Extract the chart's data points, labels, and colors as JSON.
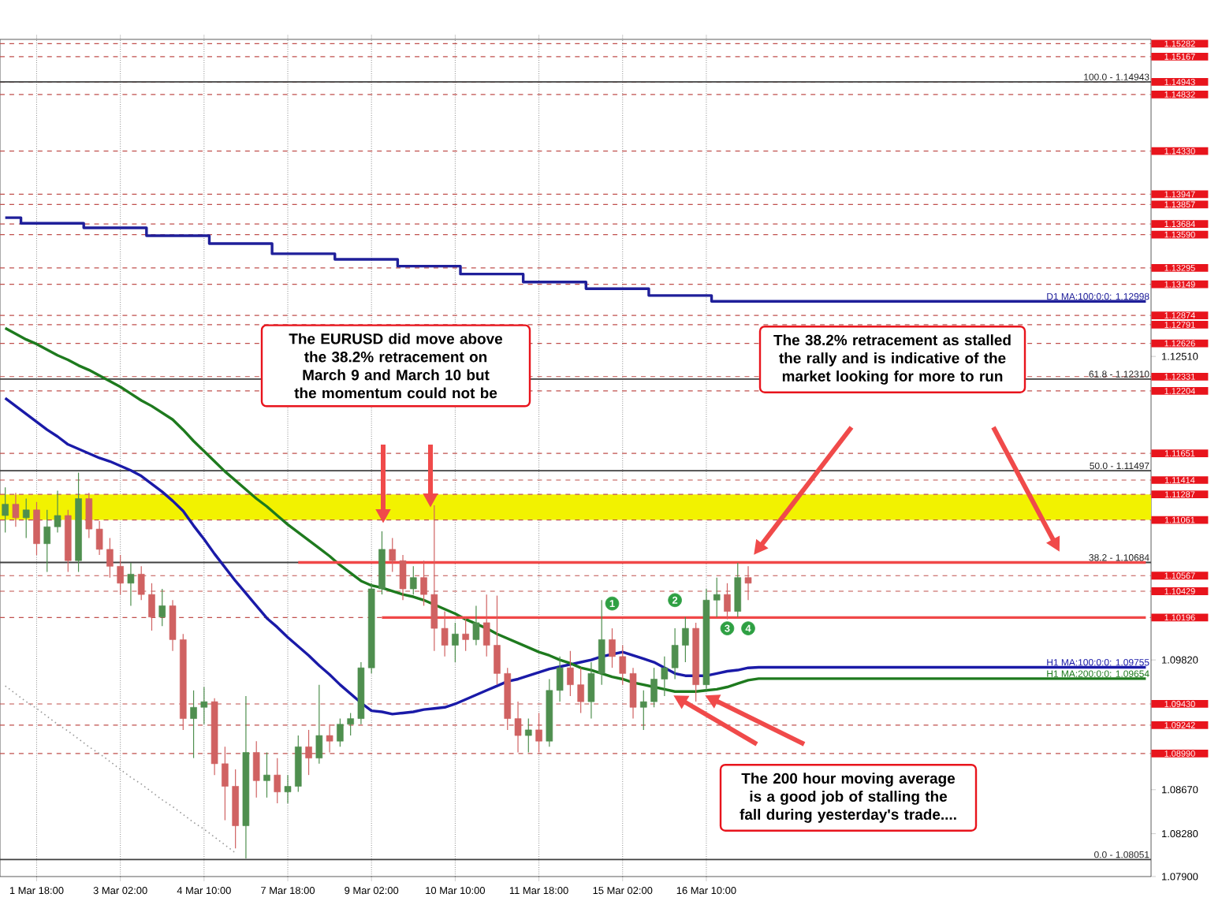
{
  "chart_data": {
    "type": "candlestick",
    "categories": [
      null,
      null,
      null,
      "1 Mar 18:00",
      null,
      null,
      null,
      null,
      null,
      null,
      null,
      "3 Mar 02:00",
      null,
      null,
      null,
      null,
      null,
      null,
      null,
      "4 Mar 10:00",
      null,
      null,
      null,
      null,
      null,
      null,
      null,
      "7 Mar 18:00",
      null,
      null,
      null,
      null,
      null,
      null,
      null,
      "9 Mar 02:00",
      null,
      null,
      null,
      null,
      null,
      null,
      null,
      "10 Mar 10:00",
      null,
      null,
      null,
      null,
      null,
      null,
      null,
      "11 Mar 18:00",
      null,
      null,
      null,
      null,
      null,
      null,
      null,
      "15 Mar 02:00",
      null,
      null,
      null,
      null,
      null,
      null,
      null,
      "16 Mar 10:00",
      null,
      null,
      null,
      null,
      null,
      null,
      null,
      null,
      null,
      null,
      null,
      null,
      null,
      null,
      null,
      null,
      null,
      null,
      null,
      null,
      null,
      null,
      null,
      null,
      null,
      null,
      null,
      null,
      null,
      null,
      null,
      null,
      null,
      null,
      null,
      null,
      null,
      null,
      null,
      null,
      null,
      null
    ],
    "ohlc": [
      [
        1.111,
        1.1135,
        1.1095,
        1.112
      ],
      [
        1.112,
        1.113,
        1.11,
        1.1108
      ],
      [
        1.1108,
        1.1125,
        1.109,
        1.1115
      ],
      [
        1.1115,
        1.1122,
        1.1075,
        1.1085
      ],
      [
        1.1085,
        1.1115,
        1.106,
        1.11
      ],
      [
        1.11,
        1.1132,
        1.1095,
        1.111
      ],
      [
        1.111,
        1.1115,
        1.106,
        1.107
      ],
      [
        1.107,
        1.1148,
        1.106,
        1.1125
      ],
      [
        1.1125,
        1.113,
        1.109,
        1.1098
      ],
      [
        1.1098,
        1.1105,
        1.1075,
        1.108
      ],
      [
        1.108,
        1.109,
        1.1055,
        1.1065
      ],
      [
        1.1065,
        1.1075,
        1.104,
        1.105
      ],
      [
        1.105,
        1.1068,
        1.103,
        1.1058
      ],
      [
        1.1058,
        1.1065,
        1.1035,
        1.104
      ],
      [
        1.104,
        1.105,
        1.1008,
        1.102
      ],
      [
        1.102,
        1.1045,
        1.1012,
        1.103
      ],
      [
        1.103,
        1.1035,
        1.099,
        1.1
      ],
      [
        1.1,
        1.1005,
        1.092,
        1.093
      ],
      [
        1.093,
        1.0955,
        1.0895,
        1.094
      ],
      [
        1.094,
        1.0958,
        1.0925,
        1.0945
      ],
      [
        1.0945,
        1.0948,
        1.088,
        1.089
      ],
      [
        1.089,
        1.0905,
        1.084,
        1.087
      ],
      [
        1.087,
        1.0885,
        1.0815,
        1.0835
      ],
      [
        1.0835,
        1.095,
        1.0806,
        1.09
      ],
      [
        1.09,
        1.091,
        1.086,
        1.0875
      ],
      [
        1.0875,
        1.09,
        1.086,
        1.088
      ],
      [
        1.088,
        1.0895,
        1.0855,
        1.0865
      ],
      [
        1.0865,
        1.088,
        1.0855,
        1.087
      ],
      [
        1.087,
        1.0915,
        1.0865,
        1.0905
      ],
      [
        1.0905,
        1.092,
        1.088,
        1.0895
      ],
      [
        1.0895,
        1.096,
        1.089,
        1.0915
      ],
      [
        1.0915,
        1.0925,
        1.09,
        1.091
      ],
      [
        1.091,
        1.093,
        1.0905,
        1.0925
      ],
      [
        1.0925,
        1.0935,
        1.0915,
        1.093
      ],
      [
        1.093,
        1.098,
        1.0925,
        1.0975
      ],
      [
        1.0975,
        1.105,
        1.097,
        1.1045
      ],
      [
        1.1045,
        1.1096,
        1.104,
        1.108
      ],
      [
        1.108,
        1.109,
        1.106,
        1.107
      ],
      [
        1.107,
        1.1075,
        1.1035,
        1.1045
      ],
      [
        1.1045,
        1.1065,
        1.104,
        1.1055
      ],
      [
        1.1055,
        1.107,
        1.103,
        1.104
      ],
      [
        1.104,
        1.1119,
        1.099,
        1.101
      ],
      [
        1.101,
        1.1025,
        1.0985,
        1.0995
      ],
      [
        1.0995,
        1.1015,
        1.098,
        1.1005
      ],
      [
        1.1005,
        1.102,
        1.099,
        1.1
      ],
      [
        1.1,
        1.103,
        1.0995,
        1.1015
      ],
      [
        1.1015,
        1.104,
        1.0985,
        1.0995
      ],
      [
        1.0995,
        1.1039,
        1.096,
        1.097
      ],
      [
        1.097,
        1.0975,
        1.092,
        1.093
      ],
      [
        1.093,
        1.0945,
        1.09,
        1.0915
      ],
      [
        1.0915,
        1.093,
        1.09,
        1.092
      ],
      [
        1.092,
        1.0935,
        1.09,
        1.091
      ],
      [
        1.091,
        1.0965,
        1.0905,
        1.0955
      ],
      [
        1.0955,
        1.0985,
        1.0945,
        1.0975
      ],
      [
        1.0975,
        1.099,
        1.095,
        1.096
      ],
      [
        1.096,
        1.0975,
        1.0935,
        1.0945
      ],
      [
        1.0945,
        1.098,
        1.093,
        1.097
      ],
      [
        1.097,
        1.1035,
        1.096,
        1.1
      ],
      [
        1.1,
        1.101,
        1.0975,
        1.0985
      ],
      [
        1.0985,
        1.0995,
        1.096,
        1.097
      ],
      [
        1.097,
        1.0975,
        1.093,
        1.094
      ],
      [
        1.094,
        1.0955,
        1.092,
        1.0945
      ],
      [
        1.0945,
        1.0975,
        1.094,
        1.0965
      ],
      [
        1.0965,
        1.0985,
        1.095,
        1.0975
      ],
      [
        1.0975,
        1.101,
        1.0965,
        1.0995
      ],
      [
        1.0995,
        1.102,
        1.098,
        1.101
      ],
      [
        1.101,
        1.1015,
        1.0945,
        1.096
      ],
      [
        1.096,
        1.1045,
        1.0955,
        1.1035
      ],
      [
        1.1035,
        1.1055,
        1.102,
        1.104
      ],
      [
        1.104,
        1.105,
        1.1018,
        1.1025
      ],
      [
        1.1025,
        1.1068,
        1.102,
        1.1055
      ],
      [
        1.1055,
        1.1065,
        1.1035,
        1.105
      ],
      null,
      null,
      null,
      null,
      null,
      null,
      null,
      null,
      null,
      null,
      null,
      null,
      null,
      null,
      null,
      null,
      null,
      null,
      null,
      null,
      null,
      null,
      null,
      null,
      null,
      null,
      null,
      null,
      null,
      null,
      null,
      null,
      null,
      null,
      null,
      null,
      null,
      null
    ],
    "series": [
      {
        "type": "step",
        "name": "D1 MA:100:0:0: 1.12998",
        "color": "#1f1f9a",
        "values": [
          1.1374,
          1.1374,
          1.1369,
          1.1369,
          1.1369,
          1.1369,
          1.1369,
          1.1369,
          1.1365,
          1.1365,
          1.1365,
          1.1365,
          1.1365,
          1.1365,
          1.1358,
          1.1358,
          1.1358,
          1.1358,
          1.1358,
          1.1358,
          1.1351,
          1.1351,
          1.1351,
          1.1351,
          1.1351,
          1.1351,
          1.1342,
          1.1342,
          1.1342,
          1.1342,
          1.1342,
          1.1342,
          1.1337,
          1.1337,
          1.1337,
          1.1337,
          1.1337,
          1.1337,
          1.1331,
          1.1331,
          1.1331,
          1.1331,
          1.1331,
          1.1331,
          1.1324,
          1.1324,
          1.1324,
          1.1324,
          1.1324,
          1.1324,
          1.1317,
          1.1317,
          1.1317,
          1.1317,
          1.1317,
          1.1317,
          1.1311,
          1.1311,
          1.1311,
          1.1311,
          1.1311,
          1.1311,
          1.1305,
          1.1305,
          1.1305,
          1.1305,
          1.1305,
          1.1305,
          1.12998,
          1.12998,
          1.12998,
          1.12998,
          1.12998,
          1.12998,
          1.12998,
          1.12998,
          1.12998,
          1.12998,
          1.12998,
          1.12998,
          1.12998,
          1.12998,
          1.12998,
          1.12998,
          1.12998,
          1.12998,
          1.12998,
          1.12998,
          1.12998,
          1.12998,
          1.12998,
          1.12998,
          1.12998,
          1.12998,
          1.12998,
          1.12998,
          1.12998,
          1.12998,
          1.12998,
          1.12998,
          1.12998,
          1.12998,
          1.12998,
          1.12998,
          1.12998,
          1.12998,
          1.12998,
          1.12998,
          1.12998,
          1.12998
        ]
      },
      {
        "type": "line",
        "name": "H1 MA:100:0:0: 1.09755",
        "color": "#1a1aa8",
        "values": [
          1.1214,
          1.1207,
          1.12,
          1.1193,
          1.1186,
          1.118,
          1.1173,
          1.1169,
          1.1165,
          1.1161,
          1.1158,
          1.1154,
          1.115,
          1.1145,
          1.1138,
          1.1131,
          1.1123,
          1.1114,
          1.1101,
          1.1089,
          1.1076,
          1.1064,
          1.1052,
          1.1041,
          1.103,
          1.1019,
          1.1011,
          1.1002,
          1.0994,
          1.0986,
          1.0977,
          1.0969,
          1.096,
          1.0952,
          1.0944,
          1.0937,
          1.0936,
          1.0934,
          1.0935,
          1.0936,
          1.0938,
          1.0939,
          1.094,
          1.0943,
          1.0947,
          1.0951,
          1.0955,
          1.0959,
          1.0963,
          1.0965,
          1.0968,
          1.0971,
          1.0974,
          1.0976,
          1.0978,
          1.098,
          1.0982,
          1.0985,
          1.0987,
          1.0989,
          1.0986,
          1.0983,
          1.098,
          1.0975,
          1.097,
          1.0968,
          1.0968,
          1.0968,
          1.097,
          1.0972,
          1.0973,
          1.0975,
          1.09755,
          1.09755,
          1.09755,
          1.09755,
          1.09755,
          1.09755,
          1.09755,
          1.09755,
          1.09755,
          1.09755,
          1.09755,
          1.09755,
          1.09755,
          1.09755,
          1.09755,
          1.09755,
          1.09755,
          1.09755,
          1.09755,
          1.09755,
          1.09755,
          1.09755,
          1.09755,
          1.09755,
          1.09755,
          1.09755,
          1.09755,
          1.09755,
          1.09755,
          1.09755,
          1.09755,
          1.09755,
          1.09755,
          1.09755,
          1.09755,
          1.09755,
          1.09755,
          1.09755
        ]
      },
      {
        "type": "line",
        "name": "H1 MA:200:0:0: 1.09654",
        "color": "#1e7a1e",
        "values": [
          1.1276,
          1.1271,
          1.1266,
          1.1262,
          1.1257,
          1.1252,
          1.1248,
          1.1243,
          1.1239,
          1.1234,
          1.1229,
          1.1224,
          1.1218,
          1.1212,
          1.1207,
          1.1201,
          1.1195,
          1.1186,
          1.1176,
          1.1167,
          1.1158,
          1.1149,
          1.1141,
          1.1133,
          1.1125,
          1.1118,
          1.111,
          1.1102,
          1.1095,
          1.1088,
          1.1081,
          1.1074,
          1.1066,
          1.1059,
          1.1052,
          1.1048,
          1.1046,
          1.1043,
          1.104,
          1.1038,
          1.1035,
          1.1031,
          1.1027,
          1.1023,
          1.1018,
          1.1014,
          1.101,
          1.1005,
          1.1001,
          1.0997,
          1.0993,
          1.0989,
          1.0986,
          1.0982,
          1.0979,
          1.0975,
          1.0973,
          1.097,
          1.0967,
          1.0965,
          1.0962,
          1.096,
          1.0958,
          1.0956,
          1.0954,
          1.0954,
          1.0954,
          1.0955,
          1.0956,
          1.0958,
          1.0961,
          1.0964,
          1.09654,
          1.09654,
          1.09654,
          1.09654,
          1.09654,
          1.09654,
          1.09654,
          1.09654,
          1.09654,
          1.09654,
          1.09654,
          1.09654,
          1.09654,
          1.09654,
          1.09654,
          1.09654,
          1.09654,
          1.09654,
          1.09654,
          1.09654,
          1.09654,
          1.09654,
          1.09654,
          1.09654,
          1.09654,
          1.09654,
          1.09654,
          1.09654,
          1.09654,
          1.09654,
          1.09654,
          1.09654,
          1.09654,
          1.09654,
          1.09654,
          1.09654,
          1.09654,
          1.09654
        ]
      },
      {
        "type": "line",
        "color": "#9a9a9a",
        "line_style": "dotted",
        "values": [
          1.0959,
          1.0952,
          1.0945,
          1.0939,
          1.0932,
          1.0925,
          1.0919,
          1.0912,
          1.0905,
          1.0899,
          1.0892,
          1.0885,
          1.0878,
          1.0872,
          1.0865,
          1.0858,
          1.0852,
          1.0845,
          1.0838,
          1.0832,
          1.0825,
          1.0818,
          1.0811,
          null,
          null,
          null,
          null,
          null,
          null,
          null,
          null,
          null,
          null,
          null,
          null,
          null,
          null,
          null,
          null,
          null,
          null,
          null,
          null,
          null,
          null,
          null,
          null,
          null,
          null,
          null,
          null,
          null,
          null,
          null,
          null,
          null,
          null,
          null,
          null,
          null,
          null,
          null,
          null,
          null,
          null,
          null,
          null,
          null,
          null,
          null,
          null,
          null,
          null,
          null,
          null,
          null,
          null,
          null,
          null,
          null,
          null,
          null,
          null,
          null,
          null,
          null,
          null,
          null,
          null,
          null,
          null,
          null,
          null,
          null,
          null,
          null,
          null,
          null,
          null,
          null,
          null,
          null,
          null,
          null,
          null,
          null,
          null,
          null,
          null,
          null
        ]
      },
      {
        "type": "line",
        "color": "#f04848",
        "values": [
          null,
          null,
          null,
          null,
          null,
          null,
          null,
          null,
          null,
          null,
          null,
          null,
          null,
          null,
          null,
          null,
          null,
          null,
          null,
          null,
          null,
          null,
          null,
          null,
          null,
          null,
          null,
          null,
          1.10684,
          1.10684,
          1.10684,
          1.10684,
          1.10684,
          1.10684,
          1.10684,
          1.10684,
          1.10684,
          1.10684,
          1.10684,
          1.10684,
          1.10684,
          1.10684,
          1.10684,
          1.10684,
          1.10684,
          1.10684,
          1.10684,
          1.10684,
          1.10684,
          1.10684,
          1.10684,
          1.10684,
          1.10684,
          1.10684,
          1.10684,
          1.10684,
          1.10684,
          1.10684,
          1.10684,
          1.10684,
          1.10684,
          1.10684,
          1.10684,
          1.10684,
          1.10684,
          1.10684,
          1.10684,
          1.10684,
          1.10684,
          1.10684,
          1.10684,
          1.10684,
          1.10684,
          1.10684,
          1.10684,
          1.10684,
          1.10684,
          1.10684,
          1.10684,
          1.10684,
          1.10684,
          1.10684,
          1.10684,
          1.10684,
          1.10684,
          1.10684,
          1.10684,
          1.10684,
          1.10684,
          1.10684,
          1.10684,
          1.10684,
          1.10684,
          1.10684,
          1.10684,
          1.10684,
          1.10684,
          1.10684,
          1.10684,
          1.10684,
          1.10684,
          1.10684,
          1.10684,
          1.10684,
          1.10684,
          1.10684,
          1.10684,
          1.10684,
          1.10684,
          1.10684
        ]
      },
      {
        "type": "line",
        "color": "#f04848",
        "values": [
          null,
          null,
          null,
          null,
          null,
          null,
          null,
          null,
          null,
          null,
          null,
          null,
          null,
          null,
          null,
          null,
          null,
          null,
          null,
          null,
          null,
          null,
          null,
          null,
          null,
          null,
          null,
          null,
          null,
          null,
          null,
          null,
          null,
          null,
          null,
          null,
          1.10196,
          1.10196,
          1.10196,
          1.10196,
          1.10196,
          1.10196,
          1.10196,
          1.10196,
          1.10196,
          1.10196,
          1.10196,
          1.10196,
          1.10196,
          1.10196,
          1.10196,
          1.10196,
          1.10196,
          1.10196,
          1.10196,
          1.10196,
          1.10196,
          1.10196,
          1.10196,
          1.10196,
          1.10196,
          1.10196,
          1.10196,
          1.10196,
          1.10196,
          1.10196,
          1.10196,
          1.10196,
          1.10196,
          1.10196,
          1.10196,
          1.10196,
          1.10196,
          1.10196,
          1.10196,
          1.10196,
          1.10196,
          1.10196,
          1.10196,
          1.10196,
          1.10196,
          1.10196,
          1.10196,
          1.10196,
          1.10196,
          1.10196,
          1.10196,
          1.10196,
          1.10196,
          1.10196,
          1.10196,
          1.10196,
          1.10196,
          1.10196,
          1.10196,
          1.10196,
          1.10196,
          1.10196,
          1.10196,
          1.10196,
          1.10196,
          1.10196,
          1.10196,
          1.10196,
          1.10196,
          1.10196,
          1.10196,
          1.10196,
          1.10196,
          1.10196
        ]
      },
      {
        "type": "scatter",
        "name": "1",
        "color": "#2ea043",
        "marker": "circle",
        "values": [
          null,
          null,
          null,
          null,
          null,
          null,
          null,
          null,
          null,
          null,
          null,
          null,
          null,
          null,
          null,
          null,
          null,
          null,
          null,
          null,
          null,
          null,
          null,
          null,
          null,
          null,
          null,
          null,
          null,
          null,
          null,
          null,
          null,
          null,
          null,
          null,
          null,
          null,
          null,
          null,
          null,
          null,
          null,
          null,
          null,
          null,
          null,
          null,
          null,
          null,
          null,
          null,
          null,
          null,
          null,
          null,
          null,
          null,
          1.1032,
          null,
          null,
          null,
          null,
          null,
          null,
          null,
          null,
          null,
          null,
          null,
          null,
          null,
          null,
          null,
          null,
          null,
          null,
          null,
          null,
          null,
          null,
          null,
          null,
          null,
          null,
          null,
          null,
          null,
          null,
          null,
          null,
          null,
          null,
          null,
          null,
          null,
          null,
          null,
          null,
          null,
          null,
          null,
          null,
          null,
          null,
          null,
          null,
          null,
          null,
          null
        ]
      },
      {
        "type": "scatter",
        "name": "2",
        "color": "#2ea043",
        "marker": "circle",
        "values": [
          null,
          null,
          null,
          null,
          null,
          null,
          null,
          null,
          null,
          null,
          null,
          null,
          null,
          null,
          null,
          null,
          null,
          null,
          null,
          null,
          null,
          null,
          null,
          null,
          null,
          null,
          null,
          null,
          null,
          null,
          null,
          null,
          null,
          null,
          null,
          null,
          null,
          null,
          null,
          null,
          null,
          null,
          null,
          null,
          null,
          null,
          null,
          null,
          null,
          null,
          null,
          null,
          null,
          null,
          null,
          null,
          null,
          null,
          null,
          null,
          null,
          null,
          null,
          null,
          1.1035,
          null,
          null,
          null,
          null,
          null,
          null,
          null,
          null,
          null,
          null,
          null,
          null,
          null,
          null,
          null,
          null,
          null,
          null,
          null,
          null,
          null,
          null,
          null,
          null,
          null,
          null,
          null,
          null,
          null,
          null,
          null,
          null,
          null,
          null,
          null,
          null,
          null,
          null,
          null,
          null,
          null,
          null,
          null,
          null,
          null
        ]
      },
      {
        "type": "scatter",
        "name": "3",
        "color": "#2ea043",
        "marker": "circle",
        "values": [
          null,
          null,
          null,
          null,
          null,
          null,
          null,
          null,
          null,
          null,
          null,
          null,
          null,
          null,
          null,
          null,
          null,
          null,
          null,
          null,
          null,
          null,
          null,
          null,
          null,
          null,
          null,
          null,
          null,
          null,
          null,
          null,
          null,
          null,
          null,
          null,
          null,
          null,
          null,
          null,
          null,
          null,
          null,
          null,
          null,
          null,
          null,
          null,
          null,
          null,
          null,
          null,
          null,
          null,
          null,
          null,
          null,
          null,
          null,
          null,
          null,
          null,
          null,
          null,
          null,
          null,
          null,
          null,
          null,
          1.101,
          null,
          null,
          null,
          null,
          null,
          null,
          null,
          null,
          null,
          null,
          null,
          null,
          null,
          null,
          null,
          null,
          null,
          null,
          null,
          null,
          null,
          null,
          null,
          null,
          null,
          null,
          null,
          null,
          null,
          null,
          null,
          null,
          null,
          null,
          null,
          null,
          null,
          null,
          null,
          null
        ]
      },
      {
        "type": "scatter",
        "name": "4",
        "color": "#2ea043",
        "marker": "circle",
        "values": [
          null,
          null,
          null,
          null,
          null,
          null,
          null,
          null,
          null,
          null,
          null,
          null,
          null,
          null,
          null,
          null,
          null,
          null,
          null,
          null,
          null,
          null,
          null,
          null,
          null,
          null,
          null,
          null,
          null,
          null,
          null,
          null,
          null,
          null,
          null,
          null,
          null,
          null,
          null,
          null,
          null,
          null,
          null,
          null,
          null,
          null,
          null,
          null,
          null,
          null,
          null,
          null,
          null,
          null,
          null,
          null,
          null,
          null,
          null,
          null,
          null,
          null,
          null,
          null,
          null,
          null,
          null,
          null,
          null,
          null,
          null,
          1.101,
          null,
          null,
          null,
          null,
          null,
          null,
          null,
          null,
          null,
          null,
          null,
          null,
          null,
          null,
          null,
          null,
          null,
          null,
          null,
          null,
          null,
          null,
          null,
          null,
          null,
          null,
          null,
          null,
          null,
          null,
          null,
          null,
          null,
          null,
          null,
          null,
          null,
          null
        ]
      }
    ],
    "ylim": [
      1.079,
      1.1532
    ],
    "yticks": [
      {
        "value": 1.079,
        "label": "1.07900"
      },
      {
        "value": 1.0828,
        "label": "1.08280"
      },
      {
        "value": 1.0867,
        "label": "1.08670"
      },
      {
        "value": 1.0982,
        "label": "1.09820"
      },
      {
        "value": 1.1251,
        "label": "1.12510"
      }
    ],
    "grid": "x",
    "bands": [
      {
        "axis": "y",
        "from": 1.11061,
        "to": 1.11287,
        "color": "#f2f200"
      }
    ],
    "ref_lines": [
      {
        "axis": "y",
        "value": 1.15282,
        "label": "1.15282",
        "color": "#c0504d",
        "line_style": "dashed"
      },
      {
        "axis": "y",
        "value": 1.15167,
        "label": "1.15167",
        "color": "#c0504d",
        "line_style": "dashed"
      },
      {
        "axis": "y",
        "value": 1.14943,
        "label": "1.14943",
        "color": "#c0504d",
        "line_style": "dashed"
      },
      {
        "axis": "y",
        "value": 1.14832,
        "label": "1.14832",
        "color": "#c0504d",
        "line_style": "dashed"
      },
      {
        "axis": "y",
        "value": 1.1433,
        "label": "1.14330",
        "color": "#c0504d",
        "line_style": "dashed"
      },
      {
        "axis": "y",
        "value": 1.13947,
        "label": "1.13947",
        "color": "#c0504d",
        "line_style": "dashed"
      },
      {
        "axis": "y",
        "value": 1.13857,
        "label": "1.13857",
        "color": "#c0504d",
        "line_style": "dashed"
      },
      {
        "axis": "y",
        "value": 1.13684,
        "label": "1.13684",
        "color": "#c0504d",
        "line_style": "dashed"
      },
      {
        "axis": "y",
        "value": 1.1359,
        "label": "1.13590",
        "color": "#c0504d",
        "line_style": "dashed"
      },
      {
        "axis": "y",
        "value": 1.13295,
        "label": "1.13295",
        "color": "#c0504d",
        "line_style": "dashed"
      },
      {
        "axis": "y",
        "value": 1.13149,
        "label": "1.13149",
        "color": "#c0504d",
        "line_style": "dashed"
      },
      {
        "axis": "y",
        "value": 1.12874,
        "label": "1.12874",
        "color": "#c0504d",
        "line_style": "dashed"
      },
      {
        "axis": "y",
        "value": 1.12791,
        "label": "1.12791",
        "color": "#c0504d",
        "line_style": "dashed"
      },
      {
        "axis": "y",
        "value": 1.12626,
        "label": "1.12626",
        "color": "#c0504d",
        "line_style": "dashed"
      },
      {
        "axis": "y",
        "value": 1.12331,
        "label": "1.12331",
        "color": "#c0504d",
        "line_style": "dashed"
      },
      {
        "axis": "y",
        "value": 1.12204,
        "label": "1.12204",
        "color": "#c0504d",
        "line_style": "dashed"
      },
      {
        "axis": "y",
        "value": 1.11651,
        "label": "1.11651",
        "color": "#c0504d",
        "line_style": "dashed"
      },
      {
        "axis": "y",
        "value": 1.11414,
        "label": "1.11414",
        "color": "#c0504d",
        "line_style": "dashed"
      },
      {
        "axis": "y",
        "value": 1.11287,
        "label": "1.11287",
        "color": "#c0504d",
        "line_style": "dashed"
      },
      {
        "axis": "y",
        "value": 1.11061,
        "label": "1.11061",
        "color": "#c0504d",
        "line_style": "dashed"
      },
      {
        "axis": "y",
        "value": 1.10567,
        "label": "1.10567",
        "color": "#c0504d",
        "line_style": "dashed"
      },
      {
        "axis": "y",
        "value": 1.10429,
        "label": "1.10429",
        "color": "#c0504d",
        "line_style": "dashed"
      },
      {
        "axis": "y",
        "value": 1.10196,
        "label": "1.10196",
        "color": "#c0504d",
        "line_style": "dashed"
      },
      {
        "axis": "y",
        "value": 1.0943,
        "label": "1.09430",
        "color": "#c0504d",
        "line_style": "dashed"
      },
      {
        "axis": "y",
        "value": 1.09242,
        "label": "1.09242",
        "color": "#c0504d",
        "line_style": "dashed"
      },
      {
        "axis": "y",
        "value": 1.0899,
        "label": "1.08990",
        "color": "#c0504d",
        "line_style": "dashed"
      },
      {
        "axis": "y",
        "value": 1.14943,
        "color": "#404040",
        "line_style": "solid"
      },
      {
        "axis": "y",
        "value": 1.1231,
        "color": "#404040",
        "line_style": "solid"
      },
      {
        "axis": "y",
        "value": 1.11497,
        "color": "#404040",
        "line_style": "solid"
      },
      {
        "axis": "y",
        "value": 1.10684,
        "color": "#404040",
        "line_style": "solid"
      },
      {
        "axis": "y",
        "value": 1.08051,
        "color": "#404040",
        "line_style": "solid"
      }
    ],
    "annotations": [
      "The EURUSD did move above the 38.2% retracement on March 9 and March 10 but the momentum could not be",
      "The 38.2% retracement as stalled the rally and is indicative of the market looking for more to run",
      "The 200 hour moving average is a good job of stalling the fall during yesterday's trade....",
      {
        "text": "100.0 - 1.14943",
        "y": 1.14943
      },
      {
        "text": "61.8 - 1.12310",
        "y": 1.1231
      },
      {
        "text": "50.0 - 1.11497",
        "y": 1.11497
      },
      {
        "text": "38.2 - 1.10684",
        "y": 1.10684
      },
      {
        "text": "0.0 - 1.08051",
        "y": 1.08051
      }
    ]
  }
}
